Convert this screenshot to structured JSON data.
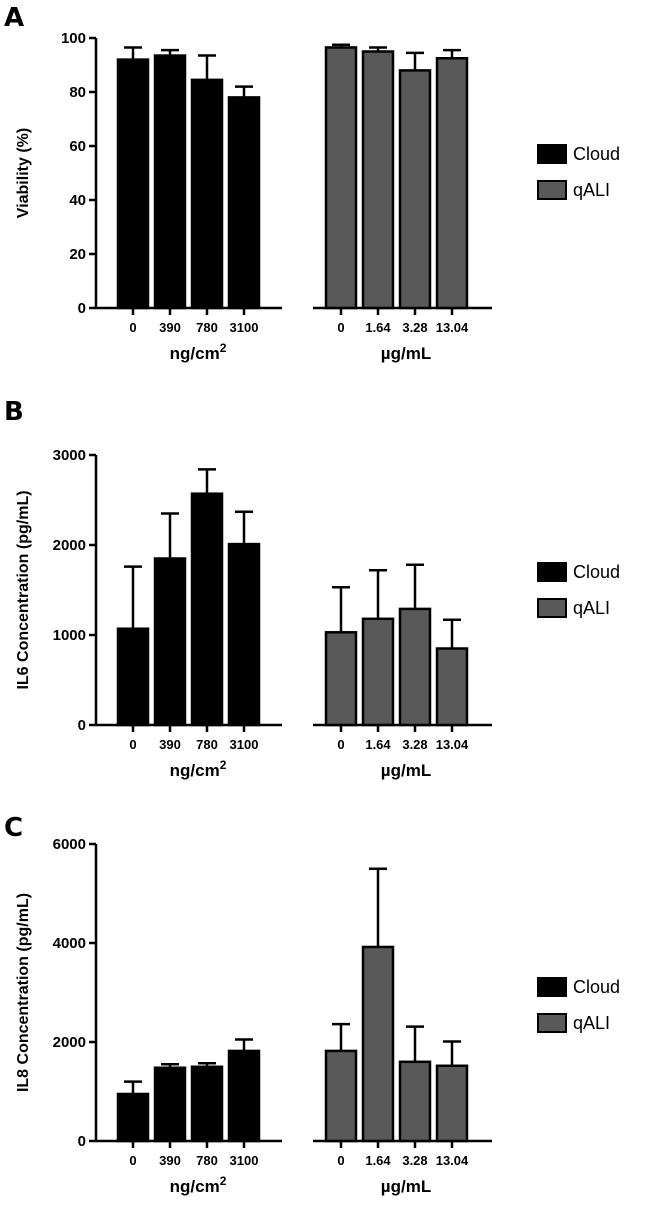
{
  "colors": {
    "cloud": "#000000",
    "qali": "#595959",
    "axis": "#000000"
  },
  "chart_data": [
    {
      "panel": "A",
      "type": "bar",
      "ylabel": "Viability (%)",
      "ylim": [
        0,
        100
      ],
      "yticks": [
        0,
        20,
        40,
        60,
        80,
        100
      ],
      "legend": {
        "placement": "right",
        "entries": [
          "Cloud",
          "qALI"
        ]
      },
      "groups": [
        {
          "label": "ng/cm",
          "sup": "2",
          "series": "Cloud",
          "categories": [
            "0",
            "390",
            "780",
            "3100"
          ],
          "values": [
            92,
            93.5,
            84.5,
            78
          ],
          "errors": [
            4.5,
            2,
            9,
            4
          ]
        },
        {
          "label": "µg/mL",
          "sup": "",
          "series": "qALI",
          "categories": [
            "0",
            "1.64",
            "3.28",
            "13.04"
          ],
          "values": [
            96.5,
            95,
            88,
            92.5
          ],
          "errors": [
            1,
            1.5,
            6.5,
            3
          ]
        }
      ]
    },
    {
      "panel": "B",
      "type": "bar",
      "ylabel": "IL6 Concentration (pg/mL)",
      "ylim": [
        0,
        3000
      ],
      "yticks": [
        0,
        1000,
        2000,
        3000
      ],
      "legend": {
        "placement": "right",
        "entries": [
          "Cloud",
          "qALI"
        ]
      },
      "groups": [
        {
          "label": "ng/cm",
          "sup": "2",
          "series": "Cloud",
          "categories": [
            "0",
            "390",
            "780",
            "3100"
          ],
          "values": [
            1070,
            1850,
            2570,
            2010
          ],
          "errors": [
            690,
            500,
            270,
            360
          ]
        },
        {
          "label": "µg/mL",
          "sup": "",
          "series": "qALI",
          "categories": [
            "0",
            "1.64",
            "3.28",
            "13.04"
          ],
          "values": [
            1030,
            1180,
            1290,
            850
          ],
          "errors": [
            500,
            540,
            490,
            320
          ]
        }
      ]
    },
    {
      "panel": "C",
      "type": "bar",
      "ylabel": "IL8  Concentration  (pg/mL)",
      "ylim": [
        0,
        6000
      ],
      "yticks": [
        0,
        2000,
        4000,
        6000
      ],
      "legend": {
        "placement": "right",
        "entries": [
          "Cloud",
          "qALI"
        ]
      },
      "groups": [
        {
          "label": "ng/cm",
          "sup": "2",
          "series": "Cloud",
          "categories": [
            "0",
            "390",
            "780",
            "3100"
          ],
          "values": [
            950,
            1480,
            1500,
            1820
          ],
          "errors": [
            250,
            70,
            70,
            230
          ]
        },
        {
          "label": "µg/mL",
          "sup": "",
          "series": "qALI",
          "categories": [
            "0",
            "1.64",
            "3.28",
            "13.04"
          ],
          "values": [
            1820,
            3920,
            1600,
            1520
          ],
          "errors": [
            540,
            1580,
            710,
            490
          ]
        }
      ]
    }
  ]
}
